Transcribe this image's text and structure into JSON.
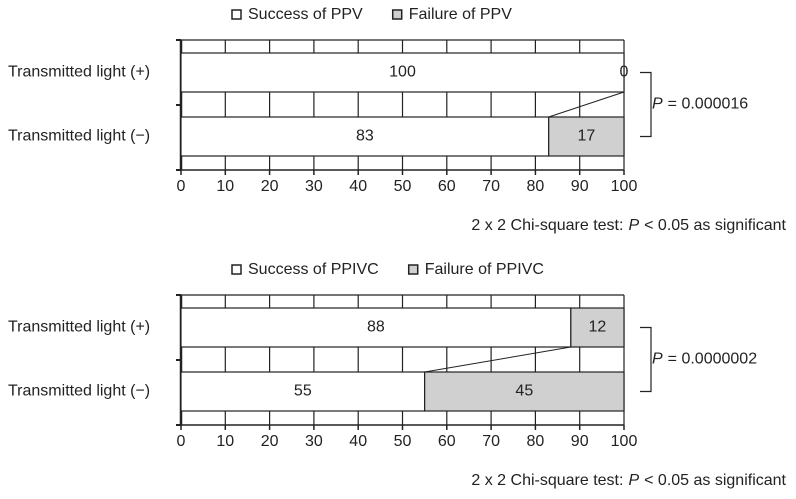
{
  "chart_data": [
    {
      "type": "bar",
      "orientation": "horizontal",
      "stacked": true,
      "categories": [
        "Transmitted light (+)",
        "Transmitted light (−)"
      ],
      "series": [
        {
          "name": "Success of PPV",
          "color": "#ffffff",
          "values": [
            100,
            83
          ]
        },
        {
          "name": "Failure of PPV",
          "color": "#d0d0d0",
          "values": [
            0,
            17
          ]
        }
      ],
      "xlim": [
        0,
        100
      ],
      "xticks": [
        0,
        10,
        20,
        30,
        40,
        50,
        60,
        70,
        80,
        90,
        100
      ],
      "grid": true,
      "p_value": [
        "P",
        "= 0.000016"
      ],
      "note": [
        "2 x 2 Chi-square test:",
        "P",
        "< 0.05 as significant"
      ]
    },
    {
      "type": "bar",
      "orientation": "horizontal",
      "stacked": true,
      "categories": [
        "Transmitted light (+)",
        "Transmitted light (−)"
      ],
      "series": [
        {
          "name": "Success of PPIVC",
          "color": "#ffffff",
          "values": [
            88,
            55
          ]
        },
        {
          "name": "Failure of PPIVC",
          "color": "#d0d0d0",
          "values": [
            12,
            45
          ]
        }
      ],
      "xlim": [
        0,
        100
      ],
      "xticks": [
        0,
        10,
        20,
        30,
        40,
        50,
        60,
        70,
        80,
        90,
        100
      ],
      "grid": true,
      "p_value": [
        "P",
        "= 0.0000002"
      ],
      "note": [
        "2 x 2 Chi-square test:",
        "P",
        "< 0.05 as significant"
      ]
    }
  ]
}
